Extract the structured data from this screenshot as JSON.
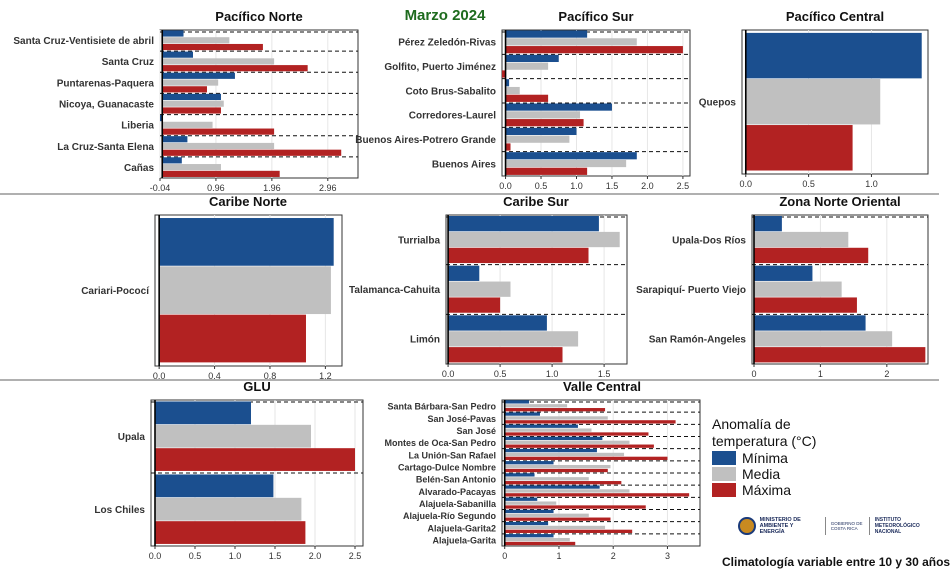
{
  "title": "Marzo 2024",
  "legend": {
    "title_line1": "Anomalía de",
    "title_line2": "temperatura (°C)",
    "items": [
      {
        "label": "Mínima",
        "color": "#1b4f8f"
      },
      {
        "label": "Media",
        "color": "#c0c0c0"
      },
      {
        "label": "Máxima",
        "color": "#b22222"
      }
    ]
  },
  "logo": {
    "ministry": "MINISTERIO DE AMBIENTE Y ENERGÍA",
    "government": "GOBIERNO DE COSTA RICA",
    "institute": "INSTITUTO METEOROLÓGICO NACIONAL"
  },
  "footer": "Climatología variable entre 10 y 30 años",
  "chart_data": [
    {
      "type": "bar",
      "title": "Pacífico Norte",
      "categories": [
        "Santa Cruz-Ventisiete de abril",
        "Santa Cruz",
        "Puntarenas-Paquera",
        "Nicoya, Guanacaste",
        "Liberia",
        "La Cruz-Santa Elena",
        "Cañas"
      ],
      "series": [
        {
          "name": "Mínima",
          "values": [
            0.38,
            0.55,
            1.3,
            1.05,
            -0.04,
            0.45,
            0.35
          ]
        },
        {
          "name": "Media",
          "values": [
            1.2,
            2.0,
            1.0,
            1.1,
            0.9,
            2.0,
            1.05
          ]
        },
        {
          "name": "Máxima",
          "values": [
            1.8,
            2.6,
            0.8,
            1.05,
            2.0,
            3.2,
            2.1
          ]
        }
      ],
      "xlim": [
        -0.04,
        3.5
      ],
      "ticks": [
        -0.04,
        0.96,
        1.96,
        2.96
      ],
      "tick_labels": [
        "-0.04",
        "0.96",
        "1.96",
        "2.96"
      ]
    },
    {
      "type": "bar",
      "title": "Pacífico Sur",
      "categories": [
        "Pérez Zeledón-Rivas",
        "Golfito, Puerto Jiménez",
        "Coto Brus-Sabalito",
        "Corredores-Laurel",
        "Buenos Aires-Potrero Grande",
        "Buenos Aires"
      ],
      "series": [
        {
          "name": "Mínima",
          "values": [
            1.15,
            0.75,
            0.05,
            1.5,
            1.0,
            1.85
          ]
        },
        {
          "name": "Media",
          "values": [
            1.85,
            0.6,
            0.2,
            1.05,
            0.9,
            1.7
          ]
        },
        {
          "name": "Máxima",
          "values": [
            2.5,
            -0.05,
            0.6,
            1.1,
            0.07,
            1.15
          ]
        }
      ],
      "xlim": [
        -0.05,
        2.6
      ],
      "ticks": [
        0,
        0.5,
        1,
        1.5,
        2,
        2.5
      ],
      "tick_labels": [
        "0.0",
        "0.5",
        "1.0",
        "1.5",
        "2.0",
        "2.5"
      ]
    },
    {
      "type": "bar",
      "title": "Pacífico Central",
      "categories": [
        "Quepos"
      ],
      "series": [
        {
          "name": "Mínima",
          "values": [
            1.4
          ]
        },
        {
          "name": "Media",
          "values": [
            1.07
          ]
        },
        {
          "name": "Máxima",
          "values": [
            0.85
          ]
        }
      ],
      "xlim": [
        -0.03,
        1.45
      ],
      "ticks": [
        0,
        0.5,
        1
      ],
      "tick_labels": [
        "0.0",
        "0.5",
        "1.0"
      ]
    },
    {
      "type": "bar",
      "title": "Caribe Norte",
      "categories": [
        "Cariari-Pococí"
      ],
      "series": [
        {
          "name": "Mínima",
          "values": [
            1.26
          ]
        },
        {
          "name": "Media",
          "values": [
            1.24
          ]
        },
        {
          "name": "Máxima",
          "values": [
            1.06
          ]
        }
      ],
      "xlim": [
        -0.03,
        1.32
      ],
      "ticks": [
        0,
        0.4,
        0.8,
        1.2
      ],
      "tick_labels": [
        "0.0",
        "0.4",
        "0.8",
        "1.2"
      ]
    },
    {
      "type": "bar",
      "title": "Caribe Sur",
      "categories": [
        "Turrialba",
        "Talamanca-Cahuita",
        "Limón"
      ],
      "series": [
        {
          "name": "Mínima",
          "values": [
            1.45,
            0.3,
            0.95
          ]
        },
        {
          "name": "Media",
          "values": [
            1.65,
            0.6,
            1.25
          ]
        },
        {
          "name": "Máxima",
          "values": [
            1.35,
            0.5,
            1.1
          ]
        }
      ],
      "xlim": [
        -0.02,
        1.72
      ],
      "ticks": [
        0,
        0.5,
        1,
        1.5
      ],
      "tick_labels": [
        "0.0",
        "0.5",
        "1.0",
        "1.5"
      ]
    },
    {
      "type": "bar",
      "title": "Zona Norte Oriental",
      "categories": [
        "Upala-Dos Ríos",
        "Sarapiquí- Puerto Viejo",
        "San Ramón-Angeles"
      ],
      "series": [
        {
          "name": "Mínima",
          "values": [
            0.42,
            0.88,
            1.68
          ]
        },
        {
          "name": "Media",
          "values": [
            1.42,
            1.32,
            2.08
          ]
        },
        {
          "name": "Máxima",
          "values": [
            1.72,
            1.55,
            2.58
          ]
        }
      ],
      "xlim": [
        -0.03,
        2.62
      ],
      "ticks": [
        0,
        1,
        2
      ],
      "tick_labels": [
        "0",
        "1",
        "2"
      ]
    },
    {
      "type": "bar",
      "title": "GLU",
      "categories": [
        "Upala",
        "Los Chiles"
      ],
      "series": [
        {
          "name": "Mínima",
          "values": [
            1.2,
            1.48
          ]
        },
        {
          "name": "Media",
          "values": [
            1.95,
            1.83
          ]
        },
        {
          "name": "Máxima",
          "values": [
            2.5,
            1.88
          ]
        }
      ],
      "xlim": [
        -0.05,
        2.6
      ],
      "ticks": [
        0,
        0.5,
        1,
        1.5,
        2,
        2.5
      ],
      "tick_labels": [
        "0.0",
        "0.5",
        "1.0",
        "1.5",
        "2.0",
        "2.5"
      ]
    },
    {
      "type": "bar",
      "title": "Valle Central",
      "categories": [
        "Santa Bárbara-San Pedro",
        "San José-Pavas",
        "San José",
        "Montes de Oca-San Pedro",
        "La Unión-San Rafael",
        "Cartago-Dulce Nombre",
        "Belén-San Antonio",
        "Alvarado-Pacayas",
        "Alajuela-Sabanilla",
        "Alajuela-Río Segundo",
        "Alajuela-Garita2",
        "Alajuela-Garita"
      ],
      "series": [
        {
          "name": "Mínima",
          "values": [
            0.45,
            0.65,
            1.35,
            1.8,
            1.7,
            0.9,
            0.55,
            1.75,
            0.6,
            0.9,
            0.8,
            0.9
          ]
        },
        {
          "name": "Media",
          "values": [
            1.15,
            1.9,
            1.6,
            2.3,
            2.2,
            1.95,
            1.55,
            2.3,
            0.95,
            1.55,
            1.85,
            1.2
          ]
        },
        {
          "name": "Máxima",
          "values": [
            1.85,
            3.15,
            2.65,
            2.75,
            3.0,
            1.9,
            2.15,
            3.4,
            2.6,
            1.95,
            2.35,
            1.3
          ]
        }
      ],
      "xlim": [
        -0.05,
        3.6
      ],
      "ticks": [
        0,
        1,
        2,
        3
      ],
      "tick_labels": [
        "0",
        "1",
        "2",
        "3"
      ]
    }
  ]
}
